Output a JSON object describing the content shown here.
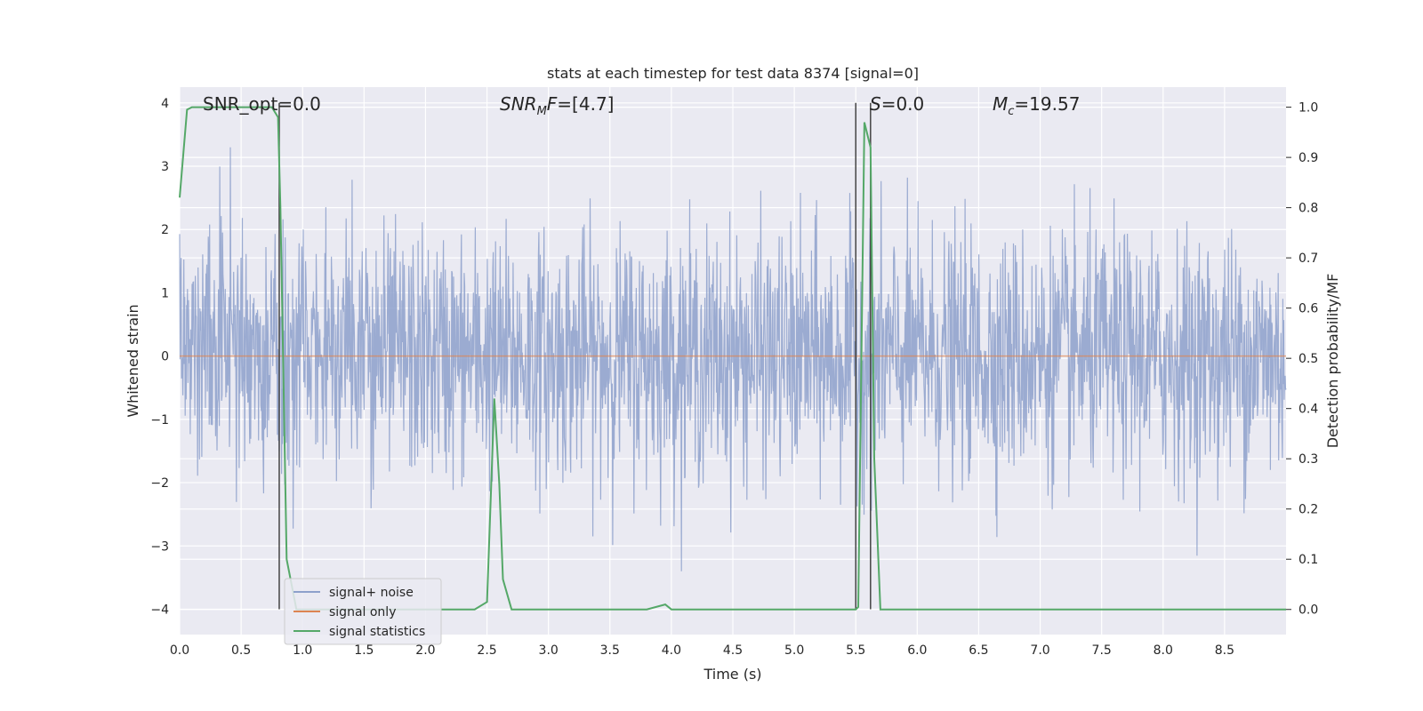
{
  "chart_data": {
    "type": "line",
    "title": "stats at each timestep for test data 8374 [signal=0]",
    "xlabel": "Time (s)",
    "ylabel": "Whitened strain",
    "y2label": "Detection probability/MF",
    "xlim": [
      0,
      9.0
    ],
    "ylim": [
      -4.4,
      4.25
    ],
    "y2lim": [
      -0.05,
      1.04
    ],
    "xticks": [
      0.0,
      0.5,
      1.0,
      1.5,
      2.0,
      2.5,
      3.0,
      3.5,
      4.0,
      4.5,
      5.0,
      5.5,
      6.0,
      6.5,
      7.0,
      7.5,
      8.0,
      8.5
    ],
    "xtick_labels": [
      "0.0",
      "0.5",
      "1.0",
      "1.5",
      "2.0",
      "2.5",
      "3.0",
      "3.5",
      "4.0",
      "4.5",
      "5.0",
      "5.5",
      "6.0",
      "6.5",
      "7.0",
      "7.5",
      "8.0",
      "8.5"
    ],
    "yticks": [
      -4,
      -3,
      -2,
      -1,
      0,
      1,
      2,
      3,
      4
    ],
    "ytick_labels": [
      "−4",
      "−3",
      "−2",
      "−1",
      "0",
      "1",
      "2",
      "3",
      "4"
    ],
    "y2ticks": [
      0.0,
      0.1,
      0.2,
      0.3,
      0.4,
      0.5,
      0.6,
      0.7,
      0.8,
      0.9,
      1.0
    ],
    "y2tick_labels": [
      "0.0",
      "0.1",
      "0.2",
      "0.3",
      "0.4",
      "0.5",
      "0.6",
      "0.7",
      "0.8",
      "0.9",
      "1.0"
    ],
    "grid": true,
    "legend_position": "lower-left",
    "annotations": {
      "snr_opt": "SNR_opt=0.0",
      "snr_mf_prefix": "SNR",
      "snr_mf_sub": "M",
      "snr_mf_suffix": "F=[4.7]",
      "s_val": "S=0.0",
      "mc_prefix": "M",
      "mc_sub": "c",
      "mc_suffix": "=19.57"
    },
    "series": [
      {
        "name": "signal+ noise",
        "color": "#8da0cb",
        "kind": "noise",
        "amplitude_envelope": {
          "typical_abs": 1.6,
          "peak_max": 3.3,
          "peak_min": -3.4
        },
        "t_range": [
          0,
          9.0
        ]
      },
      {
        "name": "signal only",
        "color": "#dd8452",
        "x": [
          0,
          9.0
        ],
        "y": [
          0,
          0
        ]
      },
      {
        "name": "signal statistics",
        "color": "#55a868",
        "axis": "right",
        "x": [
          0.0,
          0.06,
          0.1,
          0.2,
          0.5,
          0.7,
          0.75,
          0.8,
          0.82,
          0.87,
          0.95,
          1.1,
          1.5,
          2.0,
          2.4,
          2.5,
          2.56,
          2.6,
          2.63,
          2.7,
          3.0,
          3.5,
          3.8,
          3.95,
          4.0,
          4.5,
          5.0,
          5.5,
          5.52,
          5.57,
          5.62,
          5.65,
          5.7,
          6.0,
          7.0,
          8.0,
          9.0
        ],
        "y": [
          0.82,
          0.995,
          1.0,
          1.0,
          1.0,
          1.0,
          1.0,
          0.98,
          0.8,
          0.1,
          0.0,
          0.0,
          0.0,
          0.0,
          0.0,
          0.015,
          0.42,
          0.25,
          0.06,
          0.0,
          0.0,
          0.0,
          0.0,
          0.01,
          0.0,
          0.0,
          0.0,
          0.0,
          0.005,
          0.97,
          0.92,
          0.3,
          0.0,
          0.0,
          0.0,
          0.0,
          0.0
        ]
      }
    ],
    "vlines": [
      {
        "x": 0.81,
        "y_from": -4,
        "y_to": 4.0
      },
      {
        "x": 5.5,
        "y_from": -4,
        "y_to": 4.0
      },
      {
        "x": 5.62,
        "y_from": -4,
        "y_to": 4.0
      }
    ]
  }
}
